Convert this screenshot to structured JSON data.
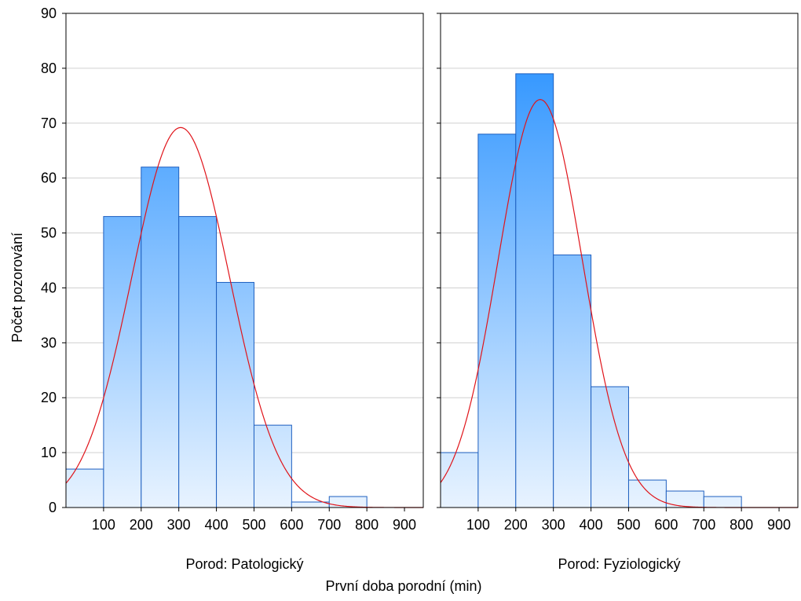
{
  "y_axis_label": "Počet pozorování",
  "x_axis_label": "První doba porodní (min)",
  "colors": {
    "bar_top": "#1e8cff",
    "bar_bottom": "#e8f3ff",
    "bar_stroke": "#1e5fbf",
    "curve": "#e0141a",
    "grid": "#d0d0d0"
  },
  "chart_data": [
    {
      "type": "bar",
      "subtitle": "Porod: Patologický",
      "bin_edges": [
        0,
        100,
        200,
        300,
        400,
        500,
        600,
        700,
        800,
        900,
        950
      ],
      "values": [
        7,
        53,
        62,
        53,
        41,
        15,
        1,
        2,
        0,
        0
      ],
      "x_ticks": [
        100,
        200,
        300,
        400,
        500,
        600,
        700,
        800,
        900
      ],
      "xlim": [
        0,
        950
      ],
      "ylim": [
        0,
        90
      ],
      "y_ticks": [
        0,
        10,
        20,
        30,
        40,
        50,
        60,
        70,
        80,
        90
      ],
      "normal_fit": {
        "mean": 305,
        "sd": 130,
        "peak": 69.2
      },
      "grid": true
    },
    {
      "type": "bar",
      "subtitle": "Porod: Fyziologický",
      "bin_edges": [
        0,
        100,
        200,
        300,
        400,
        500,
        600,
        700,
        800,
        900,
        950
      ],
      "values": [
        10,
        68,
        79,
        46,
        22,
        5,
        3,
        2,
        0,
        0
      ],
      "x_ticks": [
        100,
        200,
        300,
        400,
        500,
        600,
        700,
        800,
        900
      ],
      "xlim": [
        0,
        950
      ],
      "ylim": [
        0,
        90
      ],
      "y_ticks": [
        0,
        10,
        20,
        30,
        40,
        50,
        60,
        70,
        80,
        90
      ],
      "normal_fit": {
        "mean": 265,
        "sd": 112,
        "peak": 74.3
      },
      "grid": true
    }
  ]
}
